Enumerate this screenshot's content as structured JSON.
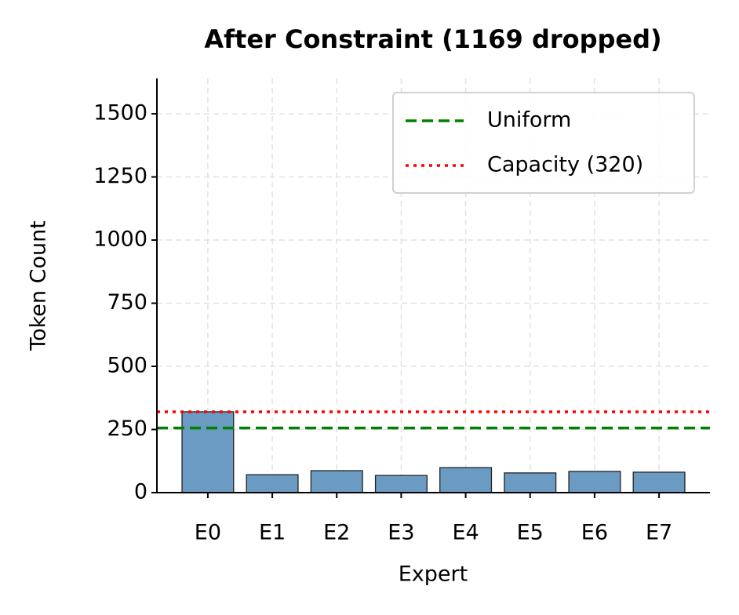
{
  "chart_data": {
    "type": "bar",
    "title": "After Constraint (1169 dropped)",
    "x_label": "Expert",
    "y_label": "Token Count",
    "categories": [
      "E0",
      "E1",
      "E2",
      "E3",
      "E4",
      "E5",
      "E6",
      "E7"
    ],
    "values": [
      320,
      71,
      87,
      68,
      99,
      78,
      84,
      81
    ],
    "color": "#6b9bc3",
    "edgecolor": "#222222",
    "ylim": [
      0,
      1640
    ],
    "yticks": [
      0,
      250,
      500,
      750,
      1000,
      1250,
      1500
    ],
    "grid": true,
    "legend": "upper right",
    "reference_lines": [
      {
        "name": "Uniform",
        "value": 256,
        "color": "#008000",
        "style": "dashed"
      },
      {
        "name": "Capacity (320)",
        "value": 320,
        "color": "#ff0000",
        "style": "dotted"
      }
    ]
  }
}
